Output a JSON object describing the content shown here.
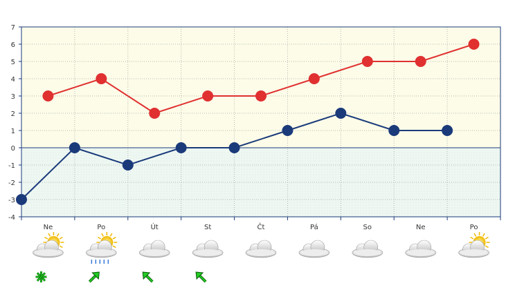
{
  "chart_data": {
    "type": "line",
    "categories": [
      "Ne",
      "Po",
      "Út",
      "St",
      "Čt",
      "Pá",
      "So",
      "Ne",
      "Po"
    ],
    "y_ticks": [
      -4,
      -3,
      -2,
      -1,
      0,
      1,
      2,
      3,
      4,
      5,
      6,
      7
    ],
    "ylim": [
      -4,
      7
    ],
    "grid": true,
    "series": [
      {
        "color": "#e03030",
        "x": [
          0.5,
          1.5,
          2.5,
          3.5,
          4.5,
          5.5,
          6.5,
          7.5,
          8.5
        ],
        "values": [
          3,
          4,
          2,
          3,
          3,
          4,
          5,
          5,
          6
        ]
      },
      {
        "color": "#1a3a7a",
        "x": [
          0,
          1,
          2,
          3,
          4,
          5,
          6,
          7,
          8
        ],
        "values": [
          -3,
          0,
          -1,
          0,
          0,
          1,
          2,
          1,
          1
        ]
      }
    ],
    "weather_icons": [
      "partly-sunny-cloud-icon",
      "partly-sunny-rain-icon",
      "cloud-icon",
      "cloud-icon",
      "cloud-icon",
      "cloud-icon",
      "cloud-icon",
      "cloud-icon",
      "partly-sunny-cloud-icon"
    ],
    "wind_icons": [
      "calm-wind-icon",
      "wind-arrow-southwest-icon",
      "wind-arrow-northeast-icon",
      "wind-arrow-northeast-icon",
      "",
      "",
      "",
      "",
      ""
    ]
  },
  "colors": {
    "positive_bg": "#fcfce8",
    "negative_bg": "#eef7f2",
    "axis": "#1a3a7a",
    "grid": "#b8b8b8",
    "wind_arrow": "#22cc22"
  }
}
